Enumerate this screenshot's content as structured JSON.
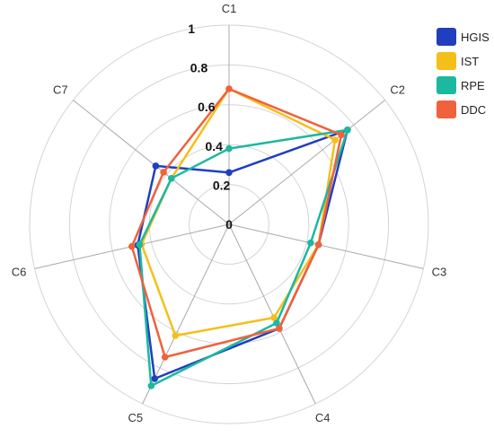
{
  "chart_data": {
    "type": "radar",
    "axes": [
      "C1",
      "C2",
      "C3",
      "C4",
      "C5",
      "C6",
      "C7"
    ],
    "rlim": [
      0,
      1
    ],
    "ticks": [
      "0",
      "0.2",
      "0.4",
      "0.6",
      "0.8",
      "1"
    ],
    "tick_values": [
      0,
      0.2,
      0.4,
      0.6,
      0.8,
      1.0
    ],
    "grid": true,
    "legend": "top-right",
    "series": [
      {
        "name": "HGIS",
        "color": "#1f3fbf",
        "values": [
          0.26,
          0.76,
          0.46,
          0.58,
          0.86,
          0.47,
          0.47
        ]
      },
      {
        "name": "IST",
        "color": "#f5bf1a",
        "values": [
          0.68,
          0.68,
          0.46,
          0.52,
          0.62,
          0.45,
          0.37
        ]
      },
      {
        "name": "RPE",
        "color": "#1db8a0",
        "values": [
          0.38,
          0.76,
          0.42,
          0.55,
          0.9,
          0.46,
          0.37
        ]
      },
      {
        "name": "DDC",
        "color": "#f0613d",
        "values": [
          0.68,
          0.72,
          0.46,
          0.58,
          0.74,
          0.5,
          0.42
        ]
      }
    ]
  }
}
